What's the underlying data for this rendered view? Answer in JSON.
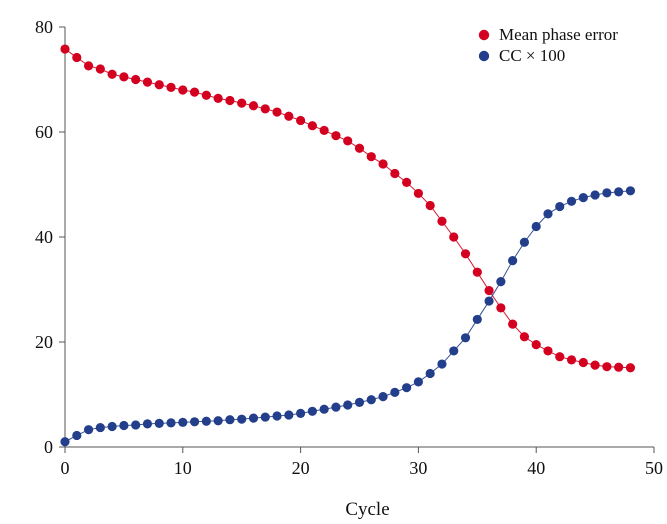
{
  "chart_data": {
    "type": "line",
    "xlabel": "Cycle",
    "ylabel": "",
    "xlim": [
      0,
      50
    ],
    "ylim": [
      0,
      80
    ],
    "xticks": [
      0,
      10,
      20,
      30,
      40,
      50
    ],
    "yticks": [
      0,
      20,
      40,
      60,
      80
    ],
    "grid": false,
    "legend_position": "top-right",
    "series": [
      {
        "name": "Mean phase error",
        "color": "#d40020",
        "x": [
          0,
          1,
          2,
          3,
          4,
          5,
          6,
          7,
          8,
          9,
          10,
          11,
          12,
          13,
          14,
          15,
          16,
          17,
          18,
          19,
          20,
          21,
          22,
          23,
          24,
          25,
          26,
          27,
          28,
          29,
          30,
          31,
          32,
          33,
          34,
          35,
          36,
          37,
          38,
          39,
          40,
          41,
          42,
          43,
          44,
          45,
          46,
          47,
          48
        ],
        "y": [
          75.8,
          74.2,
          72.6,
          72.0,
          71.0,
          70.5,
          70.0,
          69.5,
          69.0,
          68.5,
          68.0,
          67.6,
          67.0,
          66.4,
          66.0,
          65.5,
          65.0,
          64.4,
          63.8,
          63.0,
          62.2,
          61.2,
          60.3,
          59.3,
          58.3,
          56.9,
          55.3,
          53.9,
          52.1,
          50.4,
          48.3,
          46.0,
          43.0,
          40.0,
          36.8,
          33.3,
          29.8,
          26.5,
          23.4,
          21.0,
          19.5,
          18.3,
          17.2,
          16.6,
          16.1,
          15.6,
          15.3,
          15.2,
          15.1
        ]
      },
      {
        "name": "CC × 100",
        "color": "#233f8c",
        "x": [
          0,
          1,
          2,
          3,
          4,
          5,
          6,
          7,
          8,
          9,
          10,
          11,
          12,
          13,
          14,
          15,
          16,
          17,
          18,
          19,
          20,
          21,
          22,
          23,
          24,
          25,
          26,
          27,
          28,
          29,
          30,
          31,
          32,
          33,
          34,
          35,
          36,
          37,
          38,
          39,
          40,
          41,
          42,
          43,
          44,
          45,
          46,
          47,
          48
        ],
        "y": [
          1.0,
          2.2,
          3.3,
          3.7,
          3.9,
          4.1,
          4.2,
          4.4,
          4.5,
          4.6,
          4.7,
          4.8,
          4.9,
          5.0,
          5.2,
          5.3,
          5.5,
          5.7,
          5.9,
          6.1,
          6.4,
          6.8,
          7.2,
          7.6,
          8.0,
          8.5,
          9.0,
          9.6,
          10.4,
          11.3,
          12.4,
          14.0,
          15.8,
          18.3,
          20.8,
          24.3,
          27.8,
          31.5,
          35.5,
          39.0,
          42.0,
          44.4,
          45.8,
          46.8,
          47.5,
          48.0,
          48.4,
          48.6,
          48.8
        ]
      }
    ]
  }
}
